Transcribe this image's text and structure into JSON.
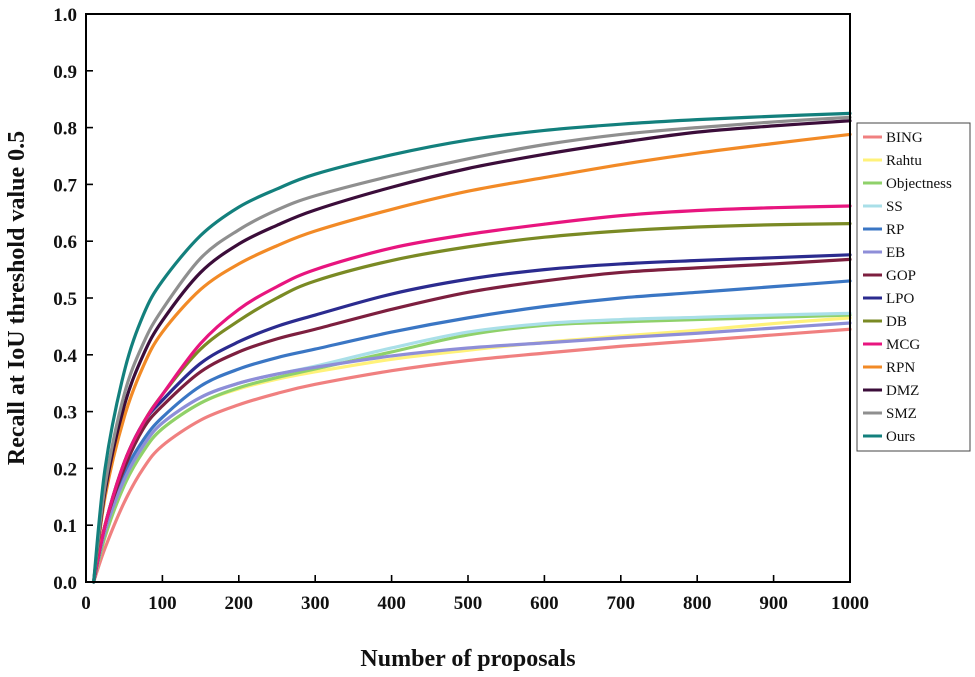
{
  "chart_data": {
    "type": "line",
    "title": "",
    "xlabel": "Number of proposals",
    "ylabel": "Recall at IoU threshold value 0.5",
    "xlim": [
      0,
      1000
    ],
    "ylim": [
      0.0,
      1.0
    ],
    "x_ticks": [
      0,
      100,
      200,
      300,
      400,
      500,
      600,
      700,
      800,
      900,
      1000
    ],
    "x_tick_labels": [
      "0",
      "100",
      "200",
      "300",
      "400",
      "500",
      "600",
      "700",
      "800",
      "900",
      "1000"
    ],
    "y_ticks": [
      0.0,
      0.1,
      0.2,
      0.3,
      0.4,
      0.5,
      0.6,
      0.7,
      0.8,
      0.9,
      1.0
    ],
    "y_tick_labels": [
      "0.0",
      "0.1",
      "0.2",
      "0.3",
      "0.4",
      "0.5",
      "0.6",
      "0.7",
      "0.8",
      "0.9",
      "1.0"
    ],
    "grid": false,
    "legend_position": "right",
    "x": [
      10,
      25,
      50,
      75,
      100,
      150,
      200,
      250,
      300,
      400,
      500,
      600,
      700,
      800,
      900,
      1000
    ],
    "series": [
      {
        "name": "BING",
        "color": "#f08080",
        "values": [
          0.0,
          0.06,
          0.14,
          0.2,
          0.24,
          0.285,
          0.312,
          0.332,
          0.348,
          0.372,
          0.39,
          0.403,
          0.415,
          0.425,
          0.435,
          0.445
        ]
      },
      {
        "name": "Rahtu",
        "color": "#fff27a",
        "values": [
          0.0,
          0.08,
          0.17,
          0.23,
          0.27,
          0.315,
          0.34,
          0.357,
          0.37,
          0.392,
          0.408,
          0.422,
          0.433,
          0.443,
          0.455,
          0.465
        ]
      },
      {
        "name": "Objectness",
        "color": "#8fd16a",
        "values": [
          0.0,
          0.08,
          0.17,
          0.23,
          0.27,
          0.315,
          0.342,
          0.36,
          0.375,
          0.405,
          0.435,
          0.452,
          0.458,
          0.462,
          0.466,
          0.47
        ]
      },
      {
        "name": "SS",
        "color": "#a9dfe8",
        "values": [
          0.0,
          0.09,
          0.18,
          0.24,
          0.28,
          0.325,
          0.35,
          0.366,
          0.38,
          0.412,
          0.44,
          0.455,
          0.462,
          0.466,
          0.47,
          0.473
        ]
      },
      {
        "name": "RP",
        "color": "#3a76c4",
        "values": [
          0.0,
          0.09,
          0.19,
          0.25,
          0.29,
          0.345,
          0.375,
          0.395,
          0.41,
          0.44,
          0.465,
          0.485,
          0.5,
          0.51,
          0.52,
          0.53
        ]
      },
      {
        "name": "EB",
        "color": "#8e8ed8",
        "values": [
          0.0,
          0.09,
          0.18,
          0.24,
          0.28,
          0.325,
          0.35,
          0.366,
          0.378,
          0.398,
          0.412,
          0.421,
          0.43,
          0.438,
          0.447,
          0.456
        ]
      },
      {
        "name": "GOP",
        "color": "#7d1f3f",
        "values": [
          0.0,
          0.1,
          0.2,
          0.27,
          0.31,
          0.37,
          0.405,
          0.428,
          0.445,
          0.48,
          0.51,
          0.53,
          0.545,
          0.553,
          0.56,
          0.568
        ]
      },
      {
        "name": "LPO",
        "color": "#2b2b8f",
        "values": [
          0.0,
          0.1,
          0.21,
          0.28,
          0.32,
          0.385,
          0.423,
          0.45,
          0.47,
          0.507,
          0.533,
          0.55,
          0.56,
          0.566,
          0.571,
          0.576
        ]
      },
      {
        "name": "DB",
        "color": "#7a8a24",
        "values": [
          0.0,
          0.1,
          0.21,
          0.28,
          0.33,
          0.41,
          0.46,
          0.5,
          0.53,
          0.566,
          0.59,
          0.607,
          0.618,
          0.625,
          0.629,
          0.631
        ]
      },
      {
        "name": "MCG",
        "color": "#e8157f",
        "values": [
          0.0,
          0.1,
          0.21,
          0.28,
          0.33,
          0.42,
          0.48,
          0.52,
          0.55,
          0.588,
          0.612,
          0.63,
          0.645,
          0.654,
          0.659,
          0.662
        ]
      },
      {
        "name": "RPN",
        "color": "#f28a26",
        "values": [
          0.0,
          0.15,
          0.29,
          0.38,
          0.44,
          0.515,
          0.56,
          0.592,
          0.618,
          0.656,
          0.688,
          0.712,
          0.735,
          0.755,
          0.772,
          0.788
        ]
      },
      {
        "name": "DMZ",
        "color": "#3b0d3a",
        "values": [
          0.0,
          0.16,
          0.31,
          0.4,
          0.46,
          0.545,
          0.595,
          0.628,
          0.655,
          0.695,
          0.728,
          0.753,
          0.774,
          0.792,
          0.803,
          0.812
        ]
      },
      {
        "name": "SMZ",
        "color": "#8f8f8f",
        "values": [
          0.0,
          0.17,
          0.33,
          0.42,
          0.48,
          0.57,
          0.62,
          0.655,
          0.68,
          0.715,
          0.745,
          0.77,
          0.788,
          0.8,
          0.81,
          0.818
        ]
      },
      {
        "name": "Ours",
        "color": "#13807d",
        "values": [
          0.0,
          0.2,
          0.37,
          0.47,
          0.53,
          0.61,
          0.66,
          0.692,
          0.718,
          0.752,
          0.778,
          0.795,
          0.806,
          0.814,
          0.82,
          0.825
        ]
      }
    ]
  }
}
